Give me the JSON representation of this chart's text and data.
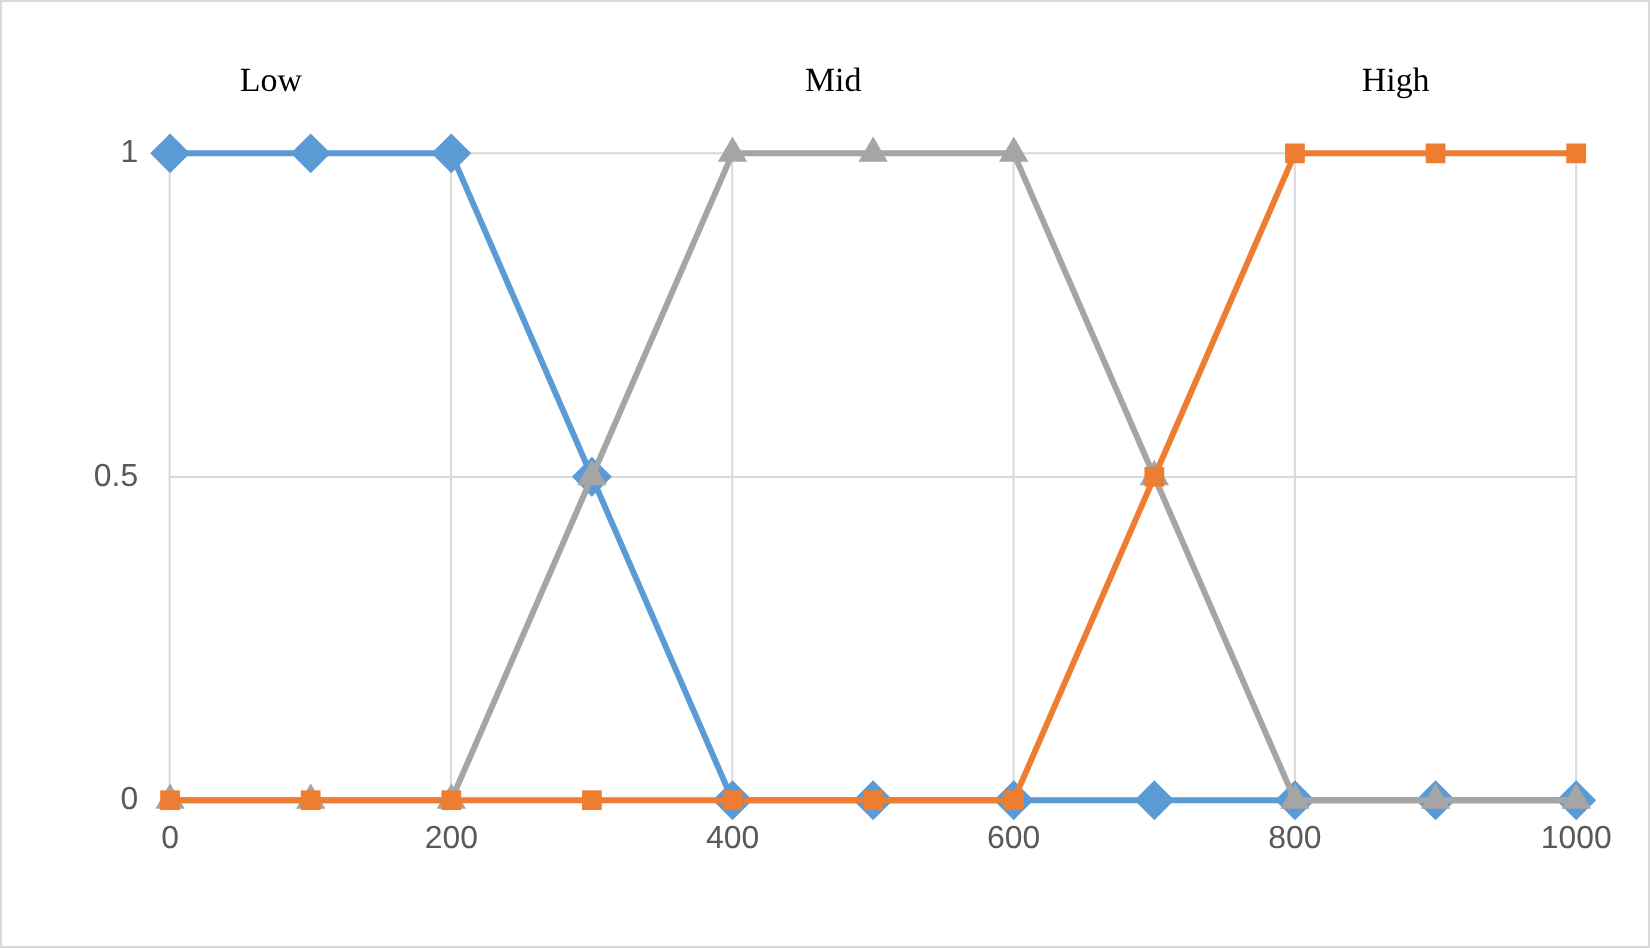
{
  "chart_data": {
    "type": "line",
    "x": [
      0,
      100,
      200,
      300,
      400,
      500,
      600,
      700,
      800,
      900,
      1000
    ],
    "series": [
      {
        "name": "Low",
        "color": "#5b9bd5",
        "marker": "diamond",
        "values": [
          1,
          1,
          1,
          0.5,
          0,
          0,
          0,
          0,
          0,
          0,
          0
        ]
      },
      {
        "name": "Mid",
        "color": "#a5a5a5",
        "marker": "triangle",
        "values": [
          0,
          0,
          0,
          0.5,
          1,
          1,
          1,
          0.5,
          0,
          0,
          0
        ]
      },
      {
        "name": "High",
        "color": "#ed7d31",
        "marker": "square",
        "values": [
          0,
          0,
          0,
          0,
          0,
          0,
          0,
          0.5,
          1,
          1,
          1
        ]
      }
    ],
    "xlim": [
      0,
      1000
    ],
    "xticks": [
      0,
      200,
      400,
      600,
      800,
      1000
    ],
    "ylim": [
      0,
      1
    ],
    "yticks": [
      0,
      0.5,
      1
    ],
    "grid": true,
    "legend": false
  }
}
